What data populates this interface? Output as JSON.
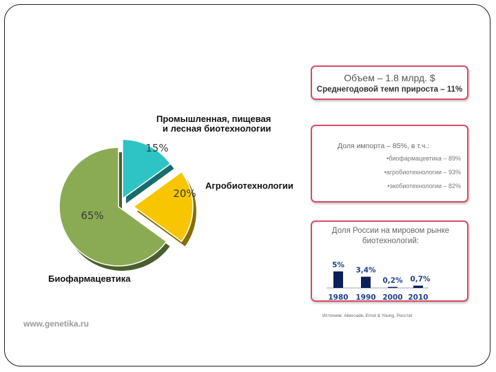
{
  "chart_data": [
    {
      "type": "pie",
      "slices": [
        {
          "label": "Промышленная, пищевая\nи лесная биотехнологии",
          "value": 15,
          "value_label": "15%",
          "color": "#2ec4c6"
        },
        {
          "label": "Агробиотехнологии",
          "value": 20,
          "value_label": "20%",
          "color": "#f7c600"
        },
        {
          "label": "Биофармацевтика",
          "value": 65,
          "value_label": "65%",
          "color": "#8aab54"
        }
      ]
    },
    {
      "type": "bar",
      "title": "Доля России на мировом рынке биотехнологий:",
      "categories": [
        "1980",
        "1990",
        "2000",
        "2010"
      ],
      "values": [
        5,
        3.4,
        0.2,
        0.7
      ],
      "value_labels": [
        "5%",
        "3,4%",
        "0,2%",
        "0,7%"
      ],
      "ylim": [
        0,
        5.5
      ],
      "color": "#0d1f5a"
    }
  ],
  "pie_labels": {
    "industrial_line1": "Промышленная, пищевая",
    "industrial_line2": "и лесная биотехнологии",
    "agro": "Агробиотехнологии",
    "bio": "Биофармацевтика"
  },
  "panel1": {
    "title": "Объем – 1.8 млрд. $",
    "subtitle": "Среднегодовой темп прироста – 11%"
  },
  "panel2": {
    "title": "Доля импорта – 85%, в т.ч.:",
    "items": [
      "•биофармацевтика – 89%",
      "•агробиотехнологии – 93%",
      "•экобиотехнологии – 82%"
    ]
  },
  "source": "Источник: Abercade, Ernst & Young, Росстат",
  "footer": "www.genetika.ru"
}
